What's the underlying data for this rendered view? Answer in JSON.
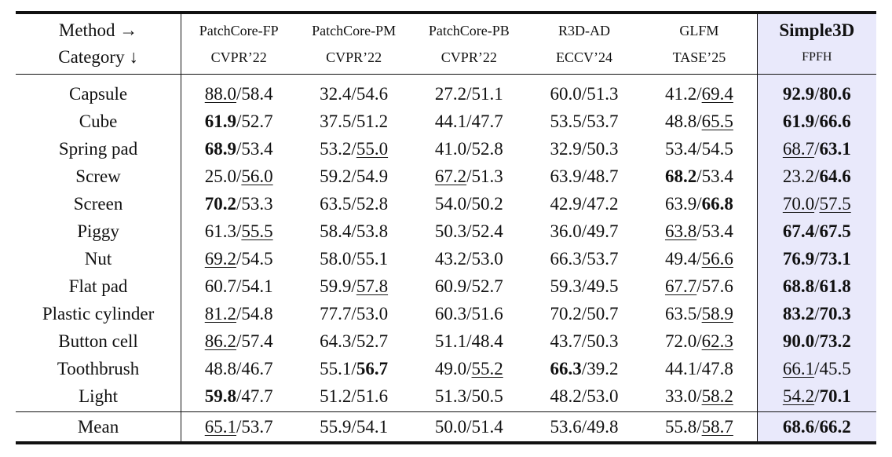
{
  "header": {
    "method_label": "Method →",
    "category_label": "Category ↓",
    "methods": [
      {
        "name": "PatchCore-FP",
        "venue": "CVPR’22"
      },
      {
        "name": "PatchCore-PM",
        "venue": "CVPR’22"
      },
      {
        "name": "PatchCore-PB",
        "venue": "CVPR’22"
      },
      {
        "name": "R3D-AD",
        "venue": "ECCV’24"
      },
      {
        "name": "GLFM",
        "venue": "TASE’25"
      },
      {
        "name": "Simple3D",
        "venue": "FPFH"
      }
    ]
  },
  "rows": [
    {
      "category": "Capsule",
      "cells": [
        {
          "a": "88.0",
          "a_style": "u",
          "b": "58.4",
          "b_style": ""
        },
        {
          "a": "32.4",
          "a_style": "",
          "b": "54.6",
          "b_style": ""
        },
        {
          "a": "27.2",
          "a_style": "",
          "b": "51.1",
          "b_style": ""
        },
        {
          "a": "60.0",
          "a_style": "",
          "b": "51.3",
          "b_style": ""
        },
        {
          "a": "41.2",
          "a_style": "",
          "b": "69.4",
          "b_style": "u"
        },
        {
          "a": "92.9",
          "a_style": "b",
          "b": "80.6",
          "b_style": "b"
        }
      ]
    },
    {
      "category": "Cube",
      "cells": [
        {
          "a": "61.9",
          "a_style": "b",
          "b": "52.7",
          "b_style": ""
        },
        {
          "a": "37.5",
          "a_style": "",
          "b": "51.2",
          "b_style": ""
        },
        {
          "a": "44.1",
          "a_style": "",
          "b": "47.7",
          "b_style": ""
        },
        {
          "a": "53.5",
          "a_style": "",
          "b": "53.7",
          "b_style": ""
        },
        {
          "a": "48.8",
          "a_style": "",
          "b": "65.5",
          "b_style": "u"
        },
        {
          "a": "61.9",
          "a_style": "b",
          "b": "66.6",
          "b_style": "b"
        }
      ]
    },
    {
      "category": "Spring pad",
      "cells": [
        {
          "a": "68.9",
          "a_style": "b",
          "b": "53.4",
          "b_style": ""
        },
        {
          "a": "53.2",
          "a_style": "",
          "b": "55.0",
          "b_style": "u"
        },
        {
          "a": "41.0",
          "a_style": "",
          "b": "52.8",
          "b_style": ""
        },
        {
          "a": "32.9",
          "a_style": "",
          "b": "50.3",
          "b_style": ""
        },
        {
          "a": "53.4",
          "a_style": "",
          "b": "54.5",
          "b_style": ""
        },
        {
          "a": "68.7",
          "a_style": "u",
          "b": "63.1",
          "b_style": "b"
        }
      ]
    },
    {
      "category": "Screw",
      "cells": [
        {
          "a": "25.0",
          "a_style": "",
          "b": "56.0",
          "b_style": "u"
        },
        {
          "a": "59.2",
          "a_style": "",
          "b": "54.9",
          "b_style": ""
        },
        {
          "a": "67.2",
          "a_style": "u",
          "b": "51.3",
          "b_style": ""
        },
        {
          "a": "63.9",
          "a_style": "",
          "b": "48.7",
          "b_style": ""
        },
        {
          "a": "68.2",
          "a_style": "b",
          "b": "53.4",
          "b_style": ""
        },
        {
          "a": "23.2",
          "a_style": "",
          "b": "64.6",
          "b_style": "b"
        }
      ]
    },
    {
      "category": "Screen",
      "cells": [
        {
          "a": "70.2",
          "a_style": "b",
          "b": "53.3",
          "b_style": ""
        },
        {
          "a": "63.5",
          "a_style": "",
          "b": "52.8",
          "b_style": ""
        },
        {
          "a": "54.0",
          "a_style": "",
          "b": "50.2",
          "b_style": ""
        },
        {
          "a": "42.9",
          "a_style": "",
          "b": "47.2",
          "b_style": ""
        },
        {
          "a": "63.9",
          "a_style": "",
          "b": "66.8",
          "b_style": "b"
        },
        {
          "a": "70.0",
          "a_style": "u",
          "b": "57.5",
          "b_style": "u"
        }
      ]
    },
    {
      "category": "Piggy",
      "cells": [
        {
          "a": "61.3",
          "a_style": "",
          "b": "55.5",
          "b_style": "u"
        },
        {
          "a": "58.4",
          "a_style": "",
          "b": "53.8",
          "b_style": ""
        },
        {
          "a": "50.3",
          "a_style": "",
          "b": "52.4",
          "b_style": ""
        },
        {
          "a": "36.0",
          "a_style": "",
          "b": "49.7",
          "b_style": ""
        },
        {
          "a": "63.8",
          "a_style": "u",
          "b": "53.4",
          "b_style": ""
        },
        {
          "a": "67.4",
          "a_style": "b",
          "b": "67.5",
          "b_style": "b"
        }
      ]
    },
    {
      "category": "Nut",
      "cells": [
        {
          "a": "69.2",
          "a_style": "u",
          "b": "54.5",
          "b_style": ""
        },
        {
          "a": "58.0",
          "a_style": "",
          "b": "55.1",
          "b_style": ""
        },
        {
          "a": "43.2",
          "a_style": "",
          "b": "53.0",
          "b_style": ""
        },
        {
          "a": "66.3",
          "a_style": "",
          "b": "53.7",
          "b_style": ""
        },
        {
          "a": "49.4",
          "a_style": "",
          "b": "56.6",
          "b_style": "u"
        },
        {
          "a": "76.9",
          "a_style": "b",
          "b": "73.1",
          "b_style": "b"
        }
      ]
    },
    {
      "category": "Flat pad",
      "cells": [
        {
          "a": "60.7",
          "a_style": "",
          "b": "54.1",
          "b_style": ""
        },
        {
          "a": "59.9",
          "a_style": "",
          "b": "57.8",
          "b_style": "u"
        },
        {
          "a": "60.9",
          "a_style": "",
          "b": "52.7",
          "b_style": ""
        },
        {
          "a": "59.3",
          "a_style": "",
          "b": "49.5",
          "b_style": ""
        },
        {
          "a": "67.7",
          "a_style": "u",
          "b": "57.6",
          "b_style": ""
        },
        {
          "a": "68.8",
          "a_style": "b",
          "b": "61.8",
          "b_style": "b"
        }
      ]
    },
    {
      "category": "Plastic cylinder",
      "cells": [
        {
          "a": "81.2",
          "a_style": "u",
          "b": "54.8",
          "b_style": ""
        },
        {
          "a": "77.7",
          "a_style": "",
          "b": "53.0",
          "b_style": ""
        },
        {
          "a": "60.3",
          "a_style": "",
          "b": "51.6",
          "b_style": ""
        },
        {
          "a": "70.2",
          "a_style": "",
          "b": "50.7",
          "b_style": ""
        },
        {
          "a": "63.5",
          "a_style": "",
          "b": "58.9",
          "b_style": "u"
        },
        {
          "a": "83.2",
          "a_style": "b",
          "b": "70.3",
          "b_style": "b"
        }
      ]
    },
    {
      "category": "Button cell",
      "cells": [
        {
          "a": "86.2",
          "a_style": "u",
          "b": "57.4",
          "b_style": ""
        },
        {
          "a": "64.3",
          "a_style": "",
          "b": "52.7",
          "b_style": ""
        },
        {
          "a": "51.1",
          "a_style": "",
          "b": "48.4",
          "b_style": ""
        },
        {
          "a": "43.7",
          "a_style": "",
          "b": "50.3",
          "b_style": ""
        },
        {
          "a": "72.0",
          "a_style": "",
          "b": "62.3",
          "b_style": "u"
        },
        {
          "a": "90.0",
          "a_style": "b",
          "b": "73.2",
          "b_style": "b"
        }
      ]
    },
    {
      "category": "Toothbrush",
      "cells": [
        {
          "a": "48.8",
          "a_style": "",
          "b": "46.7",
          "b_style": ""
        },
        {
          "a": "55.1",
          "a_style": "",
          "b": "56.7",
          "b_style": "b"
        },
        {
          "a": "49.0",
          "a_style": "",
          "b": "55.2",
          "b_style": "u"
        },
        {
          "a": "66.3",
          "a_style": "b",
          "b": "39.2",
          "b_style": ""
        },
        {
          "a": "44.1",
          "a_style": "",
          "b": "47.8",
          "b_style": ""
        },
        {
          "a": "66.1",
          "a_style": "u",
          "b": "45.5",
          "b_style": ""
        }
      ]
    },
    {
      "category": "Light",
      "cells": [
        {
          "a": "59.8",
          "a_style": "b",
          "b": "47.7",
          "b_style": ""
        },
        {
          "a": "51.2",
          "a_style": "",
          "b": "51.6",
          "b_style": ""
        },
        {
          "a": "51.3",
          "a_style": "",
          "b": "50.5",
          "b_style": ""
        },
        {
          "a": "48.2",
          "a_style": "",
          "b": "53.0",
          "b_style": ""
        },
        {
          "a": "33.0",
          "a_style": "",
          "b": "58.2",
          "b_style": "u"
        },
        {
          "a": "54.2",
          "a_style": "u",
          "b": "70.1",
          "b_style": "b"
        }
      ]
    }
  ],
  "mean": {
    "category": "Mean",
    "cells": [
      {
        "a": "65.1",
        "a_style": "u",
        "b": "53.7",
        "b_style": ""
      },
      {
        "a": "55.9",
        "a_style": "",
        "b": "54.1",
        "b_style": ""
      },
      {
        "a": "50.0",
        "a_style": "",
        "b": "51.4",
        "b_style": ""
      },
      {
        "a": "53.6",
        "a_style": "",
        "b": "49.8",
        "b_style": ""
      },
      {
        "a": "55.8",
        "a_style": "",
        "b": "58.7",
        "b_style": "u"
      },
      {
        "a": "68.6",
        "a_style": "b",
        "b": "66.2",
        "b_style": "b"
      }
    ]
  },
  "colors": {
    "highlight_column": "#e9e9fb",
    "rule": "#111111"
  }
}
